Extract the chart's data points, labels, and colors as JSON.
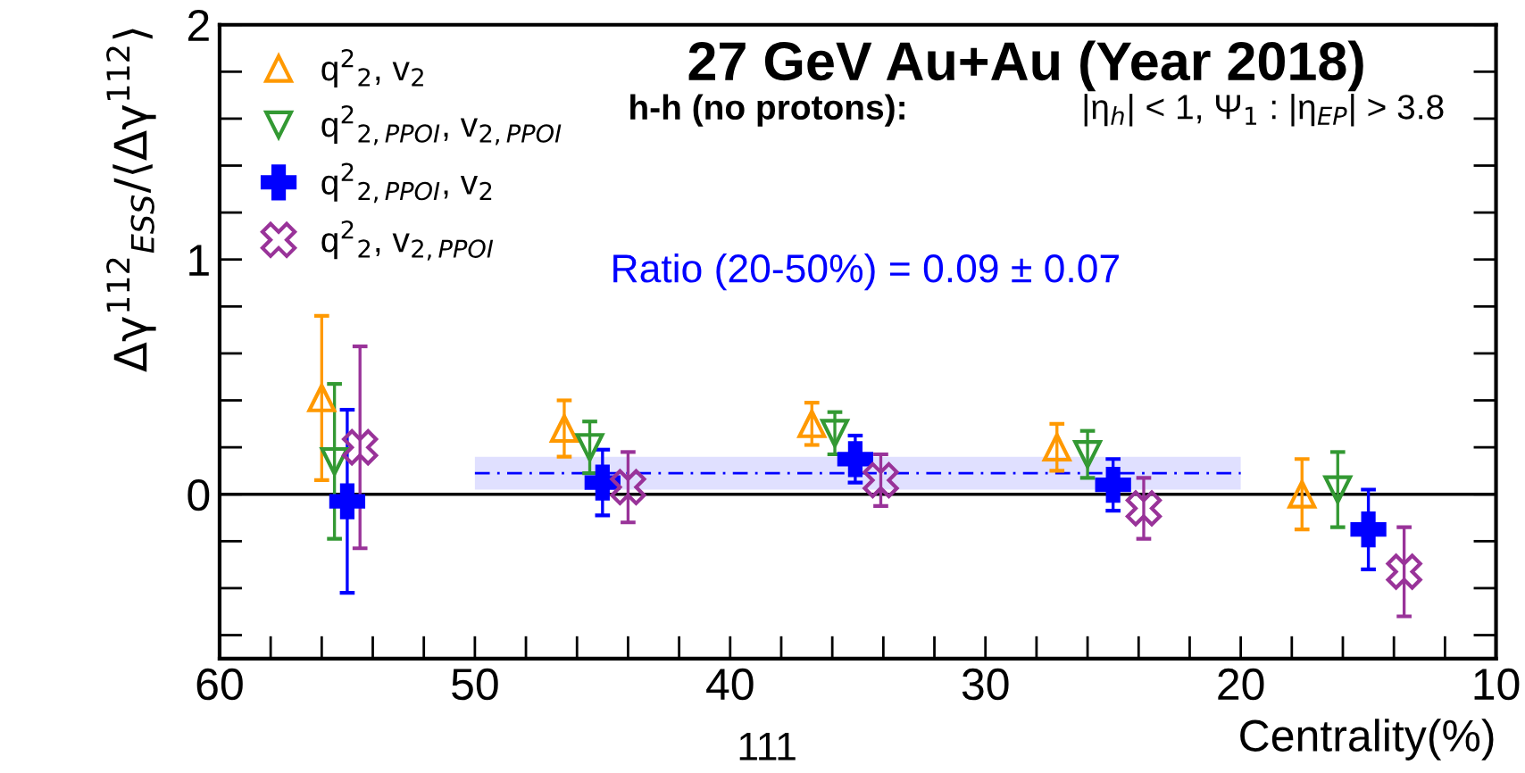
{
  "chart_data": {
    "type": "scatter",
    "title": "27 GeV Au+Au (Year 2018)",
    "subtitle": "h-h (no protons):",
    "xlabel": "Centrality(%)",
    "ylabel": "Δγ$^{112}$$_{ESS}$/⟨Δγ$^{112}$⟩",
    "xlim": [
      60,
      10
    ],
    "xticks": [
      60,
      {
        "value": 58,
        "label": null
      },
      {
        "value": 56,
        "label": null
      },
      {
        "value": 54,
        "label": null
      },
      {
        "value": 52,
        "label": null
      },
      50,
      {
        "value": 48,
        "label": null
      },
      {
        "value": 46,
        "label": null
      },
      {
        "value": 44,
        "label": null
      },
      {
        "value": 42,
        "label": null
      },
      40,
      {
        "value": 38,
        "label": null
      },
      {
        "value": 36,
        "label": null
      },
      {
        "value": 34,
        "label": null
      },
      {
        "value": 32,
        "label": null
      },
      30,
      {
        "value": 28,
        "label": null
      },
      {
        "value": 26,
        "label": null
      },
      {
        "value": 24,
        "label": null
      },
      {
        "value": 22,
        "label": null
      },
      20,
      {
        "value": 18,
        "label": null
      },
      {
        "value": 16,
        "label": null
      },
      {
        "value": 14,
        "label": null
      },
      {
        "value": 12,
        "label": null
      },
      10
    ],
    "ylim": [
      -0.7,
      2
    ],
    "yticks": [
      {
        "value": -0.6,
        "label": null
      },
      {
        "value": -0.4,
        "label": null
      },
      {
        "value": -0.2,
        "label": null
      },
      0,
      {
        "value": 0.2,
        "label": null
      },
      {
        "value": 0.4,
        "label": null
      },
      {
        "value": 0.6,
        "label": null
      },
      {
        "value": 0.8,
        "label": null
      },
      1,
      {
        "value": 1.2,
        "label": null
      },
      {
        "value": 1.4,
        "label": null
      },
      {
        "value": 1.6,
        "label": null
      },
      {
        "value": 1.8,
        "label": null
      },
      2
    ],
    "legend": "top left",
    "grid": false,
    "annotations": [
      "|η$_{h}$| < 1, Ψ$_{1}$ : |η$_{EP}$| > 3.8",
      "Ratio (20-50%) = 0.09 ± 0.07",
      "111"
    ],
    "ref_lines": [
      {
        "axis": "y",
        "value": 0,
        "color": "#000000",
        "line_style": "solid"
      }
    ],
    "series": [
      {
        "name": "q$^{2}$$_{2}$, v$_{2}$",
        "color": "#ff9900",
        "marker": "triangle",
        "x": [
          56,
          46.5,
          36.8,
          27.2,
          17.6
        ],
        "values": [
          0.41,
          0.28,
          0.3,
          0.2,
          0.0
        ],
        "errors": [
          0.35,
          0.12,
          0.09,
          0.1,
          0.15
        ]
      },
      {
        "name": "q$^{2}$$_{2,PPOI}$, v$_{2,PPOI}$",
        "color": "#339933",
        "marker": "triangle_down",
        "x": [
          55.5,
          45.5,
          35.9,
          26.0,
          16.2
        ],
        "values": [
          0.14,
          0.2,
          0.26,
          0.17,
          0.02
        ],
        "errors": [
          0.33,
          0.11,
          0.09,
          0.1,
          0.16
        ]
      },
      {
        "name": "q$^{2}$$_{2,PPOI}$, v$_{2}$",
        "color": "#0000ff",
        "marker": "plus",
        "x": [
          55,
          45,
          35.1,
          25.0,
          15.0
        ],
        "values": [
          -0.03,
          0.05,
          0.15,
          0.04,
          -0.15
        ],
        "errors": [
          0.39,
          0.14,
          0.1,
          0.11,
          0.17
        ]
      },
      {
        "name": "q$^{2}$$_{2}$, v$_{2,PPOI}$",
        "color": "#993399",
        "marker": "cross",
        "x": [
          54.5,
          44,
          34.1,
          23.8,
          13.6
        ],
        "values": [
          0.2,
          0.03,
          0.06,
          -0.06,
          -0.33
        ],
        "errors": [
          0.43,
          0.15,
          0.11,
          0.13,
          0.19
        ]
      },
      {
        "type": "line",
        "color": "#0000ff",
        "line_style": "dashed",
        "x": [
          50,
          20
        ],
        "values": [
          0.09,
          0.09
        ],
        "lower": [
          0.02,
          0.02
        ],
        "upper": [
          0.16,
          0.16
        ]
      }
    ]
  }
}
